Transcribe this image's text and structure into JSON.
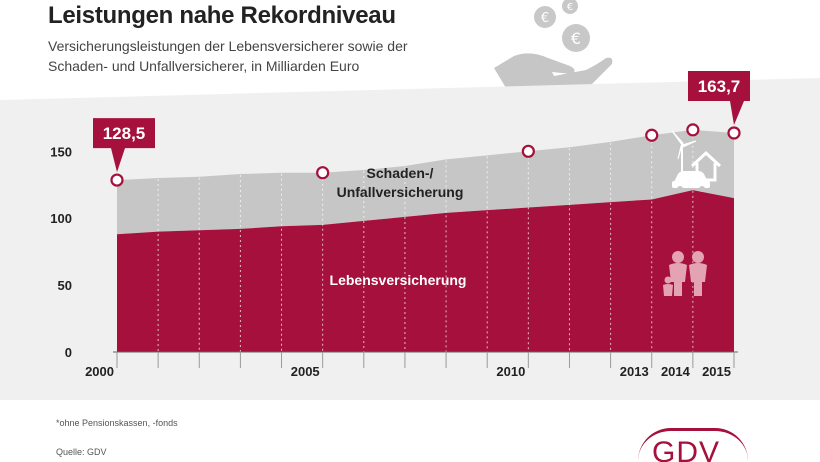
{
  "header": {
    "title": "Leistungen nahe Rekordniveau",
    "subtitle_line1": "Versicherungsleistungen der Lebensversicherer sowie der",
    "subtitle_line2": "Schaden- und Unfallversicherer, in Milliarden Euro"
  },
  "chart_data": {
    "type": "area",
    "title": "Leistungen nahe Rekordniveau",
    "subtitle": "Versicherungsleistungen der Lebensversicherer sowie der Schaden- und Unfallversicherer, in Milliarden Euro",
    "x": [
      2000,
      2001,
      2002,
      2003,
      2004,
      2005,
      2006,
      2007,
      2008,
      2009,
      2010,
      2011,
      2012,
      2013,
      2014,
      2015
    ],
    "x_tick_labels": [
      "2000",
      "2005",
      "2010",
      "2013",
      "2014",
      "2015"
    ],
    "y_ticks": [
      "0",
      "50",
      "100",
      "150"
    ],
    "ylim": [
      0,
      170
    ],
    "series": [
      {
        "name": "Lebensversicherung",
        "color": "#a5103c",
        "values": [
          88,
          90,
          91,
          92,
          94,
          95,
          98,
          101,
          104,
          106,
          108,
          110,
          112,
          114,
          121,
          115
        ]
      },
      {
        "name": "Schaden-/ Unfallversicherung",
        "color": "#c6c6c6",
        "values": [
          40.5,
          40,
          40,
          41,
          40,
          39,
          38,
          38,
          40,
          41,
          42,
          43,
          45,
          48,
          45,
          48.7
        ]
      }
    ],
    "totals": [
      {
        "x": 2000,
        "value": 128.5
      },
      {
        "x": 2005,
        "value": 134
      },
      {
        "x": 2010,
        "value": 150
      },
      {
        "x": 2013,
        "value": 162
      },
      {
        "x": 2014,
        "value": 166
      },
      {
        "x": 2015,
        "value": 163.7
      }
    ],
    "callouts": [
      {
        "x": 2000,
        "label": "128,5"
      },
      {
        "x": 2015,
        "label": "163,7"
      }
    ],
    "area_labels": {
      "schaden_line1": "Schaden-/",
      "schaden_line2": "Unfallversicherung",
      "leben": "Lebensversicherung"
    }
  },
  "colors": {
    "accent": "#a5103c",
    "area_grey": "#c6c6c6",
    "background_light": "#f0f0f0",
    "marker_fill": "#ffffff"
  },
  "icons": [
    "euro-coins-hand-icon",
    "wind-turbine-icon",
    "house-icon",
    "car-icon",
    "family-icon"
  ],
  "footer": {
    "footnote": "*ohne Pensionskassen, -fonds",
    "source": "Quelle: GDV",
    "logo_text": "GDV"
  }
}
